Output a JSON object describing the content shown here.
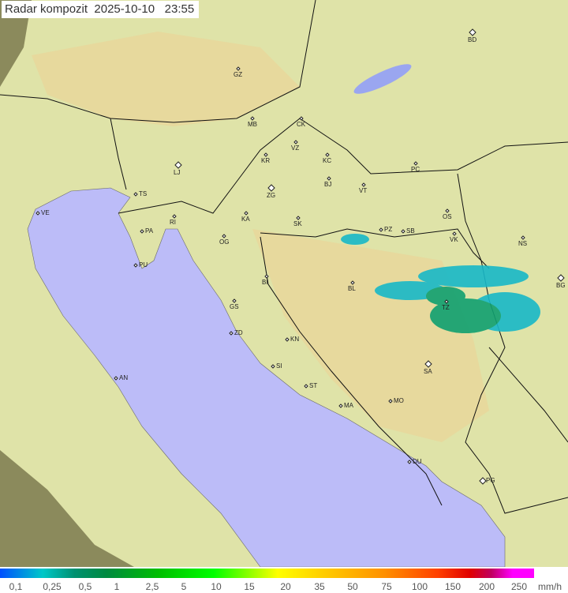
{
  "title": {
    "label": "Radar kompozit",
    "date": "2025-10-10",
    "time": "23:55"
  },
  "map": {
    "colors": {
      "outside": "#8b8a5c",
      "land": "#dfe3a8",
      "hills": "#e6d79c",
      "sea": "#bcbcf8",
      "lake": "#9aa6f0",
      "rain_light": "#18b8c8",
      "rain_mod": "#10a070"
    },
    "cities": [
      "GZ",
      "BD",
      "MB",
      "CK",
      "VZ",
      "KR",
      "KC",
      "PC",
      "LJ",
      "ZG",
      "BJ",
      "VT",
      "TS",
      "VE",
      "KA",
      "SK",
      "OS",
      "RI",
      "PA",
      "OG",
      "PZ",
      "SB",
      "VK",
      "NS",
      "PU",
      "BI",
      "BL",
      "TZ",
      "BG",
      "GS",
      "ZD",
      "KN",
      "SI",
      "SA",
      "AN",
      "ST",
      "MA",
      "MO",
      "DU",
      "PG"
    ]
  },
  "legend": {
    "ticks": [
      "0,1",
      "0,25",
      "0,5",
      "1",
      "2,5",
      "5",
      "10",
      "15",
      "20",
      "35",
      "50",
      "75",
      "100",
      "150",
      "200",
      "250"
    ],
    "unit": "mm/h"
  }
}
